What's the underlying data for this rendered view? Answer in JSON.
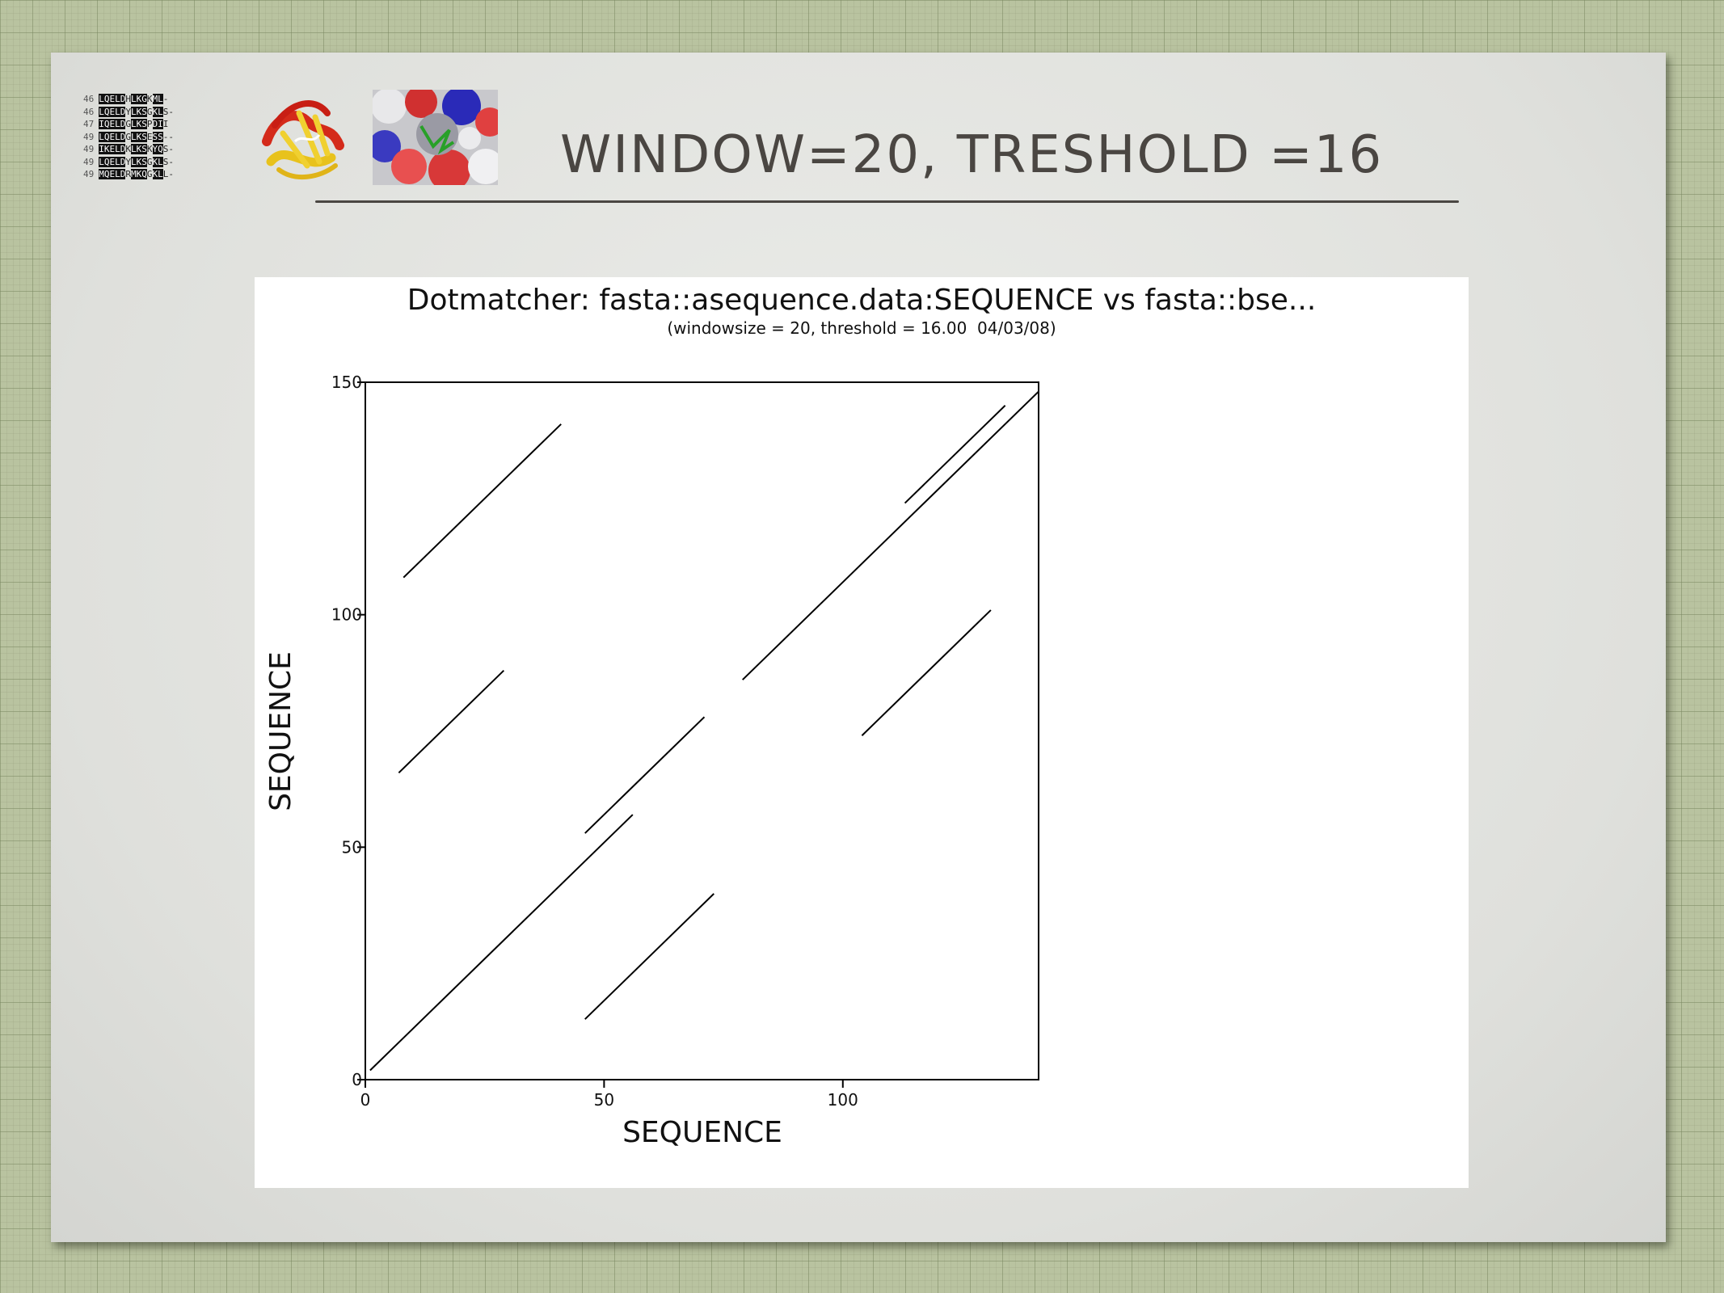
{
  "slide": {
    "title": "WINDOW=20, TRESHOLD =16",
    "thumbnail_icons": [
      "sequence-alignment-icon",
      "protein-cartoon-icon",
      "protein-surface-icon"
    ],
    "alignment_rows": [
      {
        "num": "46",
        "seq": "LQELDHLKGKML-"
      },
      {
        "num": "46",
        "seq": "LQELDYLKSGKLS-"
      },
      {
        "num": "47",
        "seq": "IQELDGLKSPDII"
      },
      {
        "num": "49",
        "seq": "LQELDGLKSESS--"
      },
      {
        "num": "49",
        "seq": "IKELDKLKSKYQS-"
      },
      {
        "num": "49",
        "seq": "LQELDYLKSGKLS-"
      },
      {
        "num": "49",
        "seq": "MQELDRMKQGKLL-"
      }
    ]
  },
  "colors": {
    "background": "#b9c3a0",
    "slide": "#e4e5e1",
    "title": "#4a4642",
    "plot_line": "#000000"
  },
  "chart_data": {
    "type": "line",
    "title": "Dotmatcher: fasta::asequence.data:SEQUENCE vs fasta::bse...",
    "subtitle": "(windowsize = 20, threshold = 16.00  04/03/08)",
    "xlabel": "SEQUENCE",
    "ylabel": "SEQUENCE",
    "xlim": [
      0,
      141
    ],
    "ylim": [
      0,
      150
    ],
    "xticks": [
      0,
      50,
      100
    ],
    "yticks": [
      0,
      50,
      100,
      150
    ],
    "grid": false,
    "series": [
      {
        "x": [
          1,
          56
        ],
        "y": [
          2,
          57
        ]
      },
      {
        "x": [
          46,
          71
        ],
        "y": [
          53,
          78
        ]
      },
      {
        "x": [
          46,
          73
        ],
        "y": [
          13,
          40
        ]
      },
      {
        "x": [
          8,
          41
        ],
        "y": [
          108,
          141
        ]
      },
      {
        "x": [
          7,
          29
        ],
        "y": [
          66,
          88
        ]
      },
      {
        "x": [
          79,
          141
        ],
        "y": [
          86,
          148
        ]
      },
      {
        "x": [
          113,
          134
        ],
        "y": [
          124,
          145
        ]
      },
      {
        "x": [
          104,
          131
        ],
        "y": [
          74,
          101
        ]
      }
    ]
  }
}
